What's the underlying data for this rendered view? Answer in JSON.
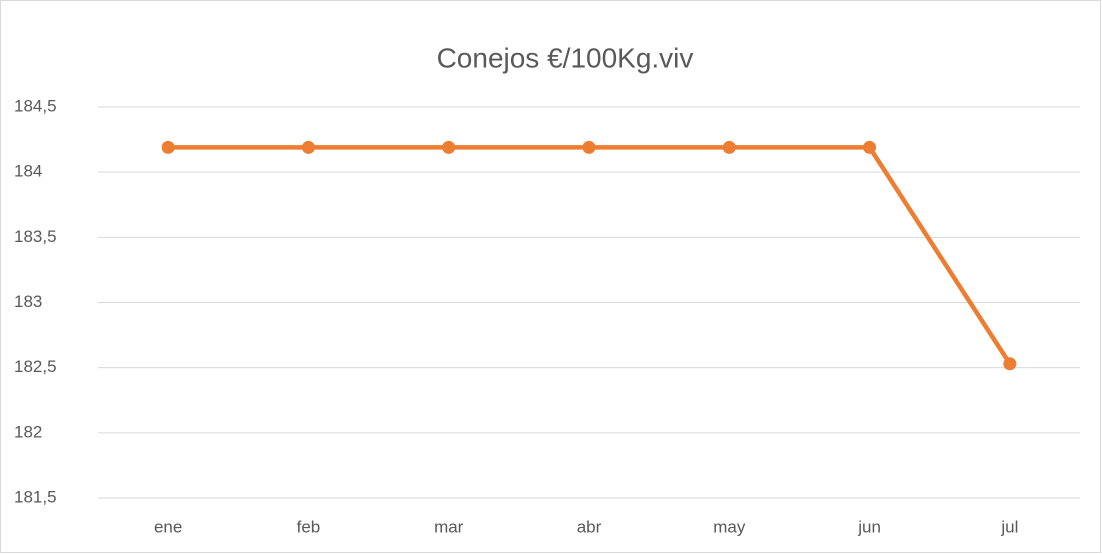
{
  "chart_data": {
    "type": "line",
    "title": "Conejos €/100Kg.viv",
    "categories": [
      "ene",
      "feb",
      "mar",
      "abr",
      "may",
      "jun",
      "jul"
    ],
    "series": [
      {
        "name": "Conejos",
        "color": "#ED7D31",
        "values": [
          184.19,
          184.19,
          184.19,
          184.19,
          184.19,
          184.19,
          182.53
        ]
      }
    ],
    "ylim": [
      181.5,
      184.5
    ],
    "yticks": [
      {
        "value": 181.5,
        "label": "181,5"
      },
      182,
      {
        "value": 182.5,
        "label": "182,5"
      },
      183,
      {
        "value": 183.5,
        "label": "183,5"
      },
      184,
      {
        "value": 184.5,
        "label": "184,5"
      }
    ],
    "grid": true
  }
}
